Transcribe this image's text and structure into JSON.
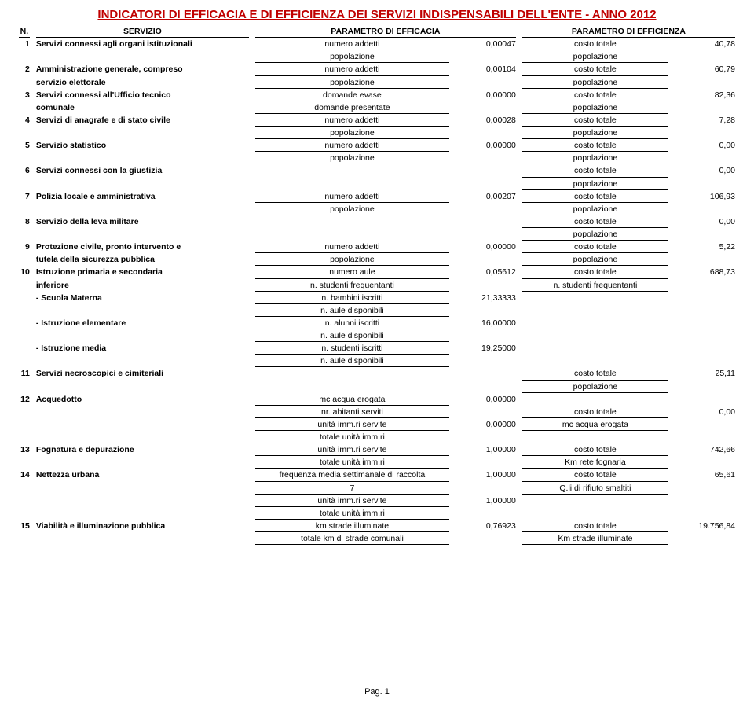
{
  "title": "INDICATORI DI EFFICACIA E DI EFFICIENZA DEI SERVIZI INDISPENSABILI DELL'ENTE - ANNO 2012",
  "headers": {
    "n": "N.",
    "servizio": "SERVIZIO",
    "efficacia": "PARAMETRO DI EFFICACIA",
    "efficienza": "PARAMETRO DI EFFICIENZA"
  },
  "rows": [
    {
      "n": "1",
      "servizio": [
        "Servizi connessi agli organi istituzionali"
      ],
      "eff": [
        [
          "numero addetti",
          "0,00047"
        ],
        [
          "popolazione",
          ""
        ]
      ],
      "effz": [
        [
          "costo totale",
          "40,78"
        ],
        [
          "popolazione",
          ""
        ]
      ]
    },
    {
      "n": "2",
      "servizio": [
        "Amministrazione generale, compreso",
        "servizio elettorale"
      ],
      "eff": [
        [
          "numero addetti",
          "0,00104"
        ],
        [
          "popolazione",
          ""
        ]
      ],
      "effz": [
        [
          "costo totale",
          "60,79"
        ],
        [
          "popolazione",
          ""
        ]
      ]
    },
    {
      "n": "3",
      "servizio": [
        "Servizi connessi all'Ufficio tecnico",
        "comunale"
      ],
      "eff": [
        [
          "domande evase",
          "0,00000"
        ],
        [
          "domande presentate",
          ""
        ]
      ],
      "effz": [
        [
          "costo totale",
          "82,36"
        ],
        [
          "popolazione",
          ""
        ]
      ]
    },
    {
      "n": "4",
      "servizio": [
        "Servizi di anagrafe e di stato civile"
      ],
      "eff": [
        [
          "numero addetti",
          "0,00028"
        ],
        [
          "popolazione",
          ""
        ]
      ],
      "effz": [
        [
          "costo totale",
          "7,28"
        ],
        [
          "popolazione",
          ""
        ]
      ]
    },
    {
      "n": "5",
      "servizio": [
        "Servizio statistico"
      ],
      "eff": [
        [
          "numero addetti",
          "0,00000"
        ],
        [
          "popolazione",
          ""
        ]
      ],
      "effz": [
        [
          "costo totale",
          "0,00"
        ],
        [
          "popolazione",
          ""
        ]
      ]
    },
    {
      "n": "6",
      "servizio": [
        "Servizi connessi con la giustizia"
      ],
      "eff": [],
      "effz": [
        [
          "costo totale",
          "0,00"
        ],
        [
          "popolazione",
          ""
        ]
      ]
    },
    {
      "n": "7",
      "servizio": [
        "Polizia locale e amministrativa"
      ],
      "eff": [
        [
          "numero addetti",
          "0,00207"
        ],
        [
          "popolazione",
          ""
        ]
      ],
      "effz": [
        [
          "costo totale",
          "106,93"
        ],
        [
          "popolazione",
          ""
        ]
      ]
    },
    {
      "n": "8",
      "servizio": [
        "Servizio della leva militare"
      ],
      "eff": [],
      "effz": [
        [
          "costo totale",
          "0,00"
        ],
        [
          "popolazione",
          ""
        ]
      ]
    },
    {
      "n": "9",
      "servizio": [
        "Protezione civile, pronto intervento e",
        "tutela della sicurezza pubblica"
      ],
      "eff": [
        [
          "numero addetti",
          "0,00000"
        ],
        [
          "popolazione",
          ""
        ]
      ],
      "effz": [
        [
          "costo totale",
          "5,22"
        ],
        [
          "popolazione",
          ""
        ]
      ]
    },
    {
      "n": "10",
      "servizio": [
        "Istruzione primaria e secondaria",
        "inferiore"
      ],
      "eff": [
        [
          "numero aule",
          "0,05612"
        ],
        [
          "n. studenti frequentanti",
          ""
        ]
      ],
      "effz": [
        [
          "costo totale",
          "688,73"
        ],
        [
          "n. studenti frequentanti",
          ""
        ]
      ]
    },
    {
      "n": "",
      "servizio": [
        "- Scuola Materna"
      ],
      "eff": [
        [
          "n. bambini iscritti",
          "21,33333"
        ],
        [
          "n. aule disponibili",
          ""
        ]
      ],
      "effz": []
    },
    {
      "n": "",
      "servizio": [
        "- Istruzione elementare"
      ],
      "eff": [
        [
          "n. alunni iscritti",
          "16,00000"
        ],
        [
          "n. aule disponibili",
          ""
        ]
      ],
      "effz": []
    },
    {
      "n": "",
      "servizio": [
        "- Istruzione media"
      ],
      "eff": [
        [
          "n. studenti iscritti",
          "19,25000"
        ],
        [
          "n. aule disponibili",
          ""
        ]
      ],
      "effz": []
    },
    {
      "n": "11",
      "servizio": [
        "Servizi necroscopici e cimiteriali"
      ],
      "eff": [],
      "effz": [
        [
          "costo totale",
          "25,11"
        ],
        [
          "popolazione",
          ""
        ]
      ]
    },
    {
      "n": "12",
      "servizio": [
        "Acquedotto"
      ],
      "eff": [
        [
          "mc acqua erogata",
          "0,00000"
        ],
        [
          "nr. abitanti serviti",
          ""
        ],
        [
          "unità imm.ri servite",
          "0,00000"
        ],
        [
          "totale unità imm.ri",
          ""
        ]
      ],
      "effz": [
        [
          "",
          ""
        ],
        [
          "costo totale",
          "0,00"
        ],
        [
          "mc acqua erogata",
          ""
        ]
      ]
    },
    {
      "n": "13",
      "servizio": [
        "Fognatura e depurazione"
      ],
      "eff": [
        [
          "unità imm.ri servite",
          "1,00000"
        ],
        [
          "totale unità imm.ri",
          ""
        ]
      ],
      "effz": [
        [
          "costo totale",
          "742,66"
        ],
        [
          "Km rete fognaria",
          ""
        ]
      ]
    },
    {
      "n": "14",
      "servizio": [
        "Nettezza urbana"
      ],
      "eff": [
        [
          "frequenza media settimanale di raccolta",
          "1,00000"
        ],
        [
          "7",
          ""
        ],
        [
          "unità imm.ri servite",
          "1,00000"
        ],
        [
          "totale unità imm.ri",
          ""
        ]
      ],
      "effz": [
        [
          "costo totale",
          "65,61"
        ],
        [
          "Q.li di rifiuto smaltiti",
          ""
        ]
      ]
    },
    {
      "n": "15",
      "servizio": [
        "Viabilità e illuminazione pubblica"
      ],
      "eff": [
        [
          "km strade illuminate",
          "0,76923"
        ],
        [
          "totale km di strade comunali",
          ""
        ]
      ],
      "effz": [
        [
          "costo totale",
          "19.756,84"
        ],
        [
          "Km strade illuminate",
          ""
        ]
      ]
    }
  ],
  "footer": "Pag. 1"
}
